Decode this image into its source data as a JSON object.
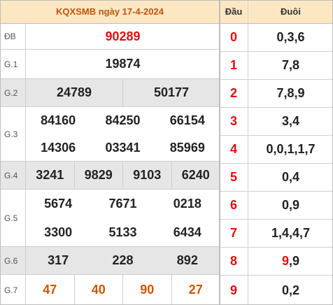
{
  "title": "KQXSMB ngày 17-4-2024",
  "prizes": {
    "db": {
      "label": "ĐB",
      "numbers": [
        "90289"
      ]
    },
    "g1": {
      "label": "G.1",
      "numbers": [
        "19874"
      ]
    },
    "g2": {
      "label": "G.2",
      "numbers": [
        "24789",
        "50177"
      ]
    },
    "g3": {
      "label": "G.3",
      "numbers": [
        "84160",
        "84250",
        "66154",
        "14306",
        "03341",
        "85969"
      ]
    },
    "g4": {
      "label": "G.4",
      "numbers": [
        "3241",
        "9829",
        "9103",
        "6240"
      ]
    },
    "g5": {
      "label": "G.5",
      "numbers": [
        "5674",
        "7671",
        "0218",
        "3300",
        "5133",
        "6434"
      ]
    },
    "g6": {
      "label": "G.6",
      "numbers": [
        "317",
        "228",
        "892"
      ]
    },
    "g7": {
      "label": "G.7",
      "numbers": [
        "47",
        "40",
        "90",
        "27"
      ]
    }
  },
  "loto": {
    "head_label": "Đầu",
    "tail_label": "Đuôi",
    "rows": [
      {
        "dau": "0",
        "duoi": "0,3,6"
      },
      {
        "dau": "1",
        "duoi": "7,8"
      },
      {
        "dau": "2",
        "duoi": "7,8,9"
      },
      {
        "dau": "3",
        "duoi": "3,4"
      },
      {
        "dau": "4",
        "duoi": "0,0,1,1,7"
      },
      {
        "dau": "5",
        "duoi": "0,4"
      },
      {
        "dau": "6",
        "duoi": "0,9"
      },
      {
        "dau": "7",
        "duoi": "1,4,4,7"
      },
      {
        "dau": "8",
        "duoi_highlight": "9",
        "duoi_rest": ",9"
      },
      {
        "dau": "9",
        "duoi": "0,2"
      }
    ]
  },
  "colors": {
    "header_bg": "#fbe8c3",
    "title_color": "#c2530e",
    "special_red": "#e01010",
    "g7_orange": "#d35400",
    "shade_bg": "#e6e6e6"
  }
}
